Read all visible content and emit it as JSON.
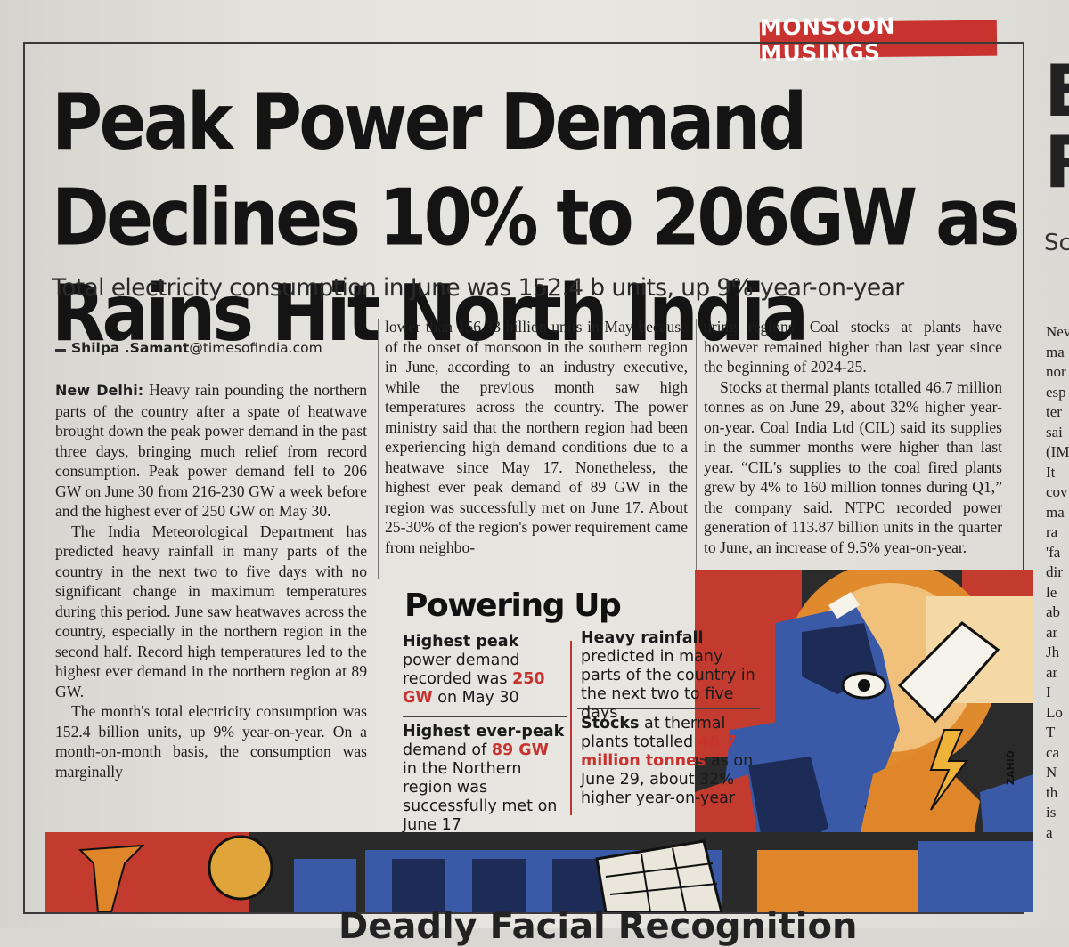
{
  "section_tag": "MONSOON MUSINGS",
  "headline": "Peak Power Demand Declines 10% to 206GW as Rains Hit North India",
  "deck": "Total electricity consumption in June was 152.4 b units, up 9% year-on-year",
  "byline": {
    "name": "Shilpa .Samant",
    "email": "@timesofindia.com"
  },
  "body": {
    "dateline": "New Delhi:",
    "col1": [
      "Heavy rain pounding the northern parts of the country after a spate of heatwave brought down the peak power demand in the past three days, bringing much relief from record consumption. Peak power demand fell to 206 GW on June 30 from 216-230 GW a week before and the highest ever of 250 GW on May 30.",
      "The India Meteorological Department has predicted heavy rainfall in many parts of the country in the next two to five days with no significant change in maximum temperatures during this period. June saw heatwaves across the country, especially in the northern region in the second half. Record high temperatures led to the highest ever demand in the northern region at 89 GW.",
      "The month's total electricity consumption was 152.4 billion units, up 9% year-on-year. On a month-on-month basis, the consumption was marginally"
    ],
    "col2": [
      "lower than 156.33 billion units in May because of the onset of monsoon in the southern region in June, according to an industry executive, while the previous month saw high temperatures across the country. The power ministry said that the northern region had been experiencing high demand conditions due to a heatwave since May 17. Nonetheless, the highest ever peak demand of 89 GW in the region was successfully met on June 17. About 25-30% of the region's power requirement came from neighbo-"
    ],
    "col3": [
      "uring regions. Coal stocks at plants have however remained higher than last year since the beginning of 2024-25.",
      "Stocks at thermal plants totalled 46.7 million tonnes as on June 29, about 32% higher year-on-year. Coal India Ltd (CIL) said its supplies in the summer months were higher than last year. “CIL's supplies to the coal fired plants grew by 4% to 160 million tonnes during Q1,” the company said. NTPC recorded power generation of 113.87 billion units in the quarter to June, an increase of 9.5% year-on-year."
    ]
  },
  "factbox": {
    "title": "Powering Up",
    "fact1": {
      "bold": "Highest peak",
      "pre": " power demand recorded was ",
      "red": "250 GW",
      "post": " on May 30"
    },
    "fact2": {
      "bold": "Highest ever-peak",
      "pre": " demand of ",
      "red": "89 GW",
      "post": " in the Northern region was successfully met on June 17"
    },
    "fact3": {
      "bold": "Heavy rainfall",
      "pre": " predicted in many parts of the country in the next two to five days",
      "red": "",
      "post": ""
    },
    "fact4": {
      "bold": "Stocks",
      "pre": " at thermal plants totalled ",
      "red": "46.7 million tonnes",
      "post": " as on June 29, about 32% higher year-on-year"
    }
  },
  "illustration_credit": "ZAHID",
  "adjacent_column_fragments": [
    "E",
    "R",
    "Sc",
    "Nev",
    "ma",
    "nor",
    "esp",
    "ter",
    "sai",
    "(IM",
    "It",
    "cov",
    "ma",
    "ra",
    "'fa",
    "dir",
    "le",
    "ab",
    "ar",
    "Jh",
    "ar",
    "I",
    "Lo",
    "T",
    "ca",
    "N",
    "th",
    "is",
    "a"
  ],
  "next_headline_fragment": "Deadly Facial Recognition",
  "colors": {
    "tag_red": "#c8322f",
    "highlight_red": "#c8322f",
    "art_blue": "#3a5aa8",
    "art_orange": "#e0862a"
  },
  "icons": [
    "lightning-icon",
    "eye-figure-illustration",
    "transmission-tower-illustration",
    "solar-panel-illustration"
  ]
}
